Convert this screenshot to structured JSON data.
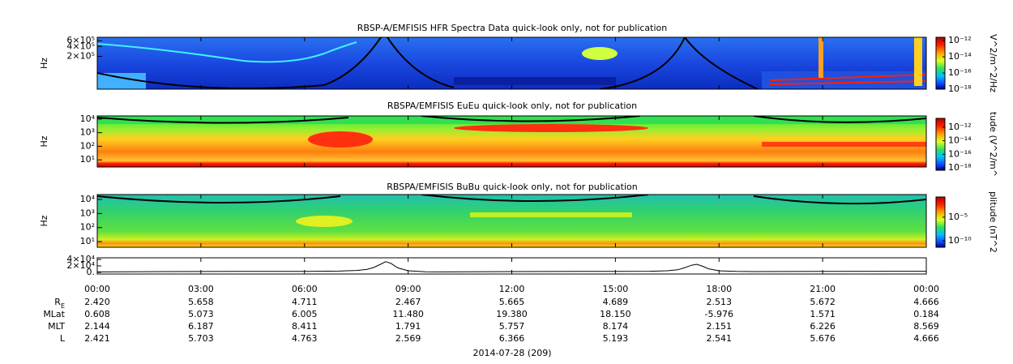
{
  "chart_data": [
    {
      "type": "spectrogram",
      "title": "RBSP-A/EMFISIS  HFR Spectra Data quick-look only, not for publication",
      "ylabel": "Hz",
      "log_y": true,
      "ylim": [
        20000,
        760000
      ],
      "yticks": [
        {
          "value": 600000,
          "label": "6×10⁵"
        },
        {
          "value": 400000,
          "label": "4×10⁵"
        },
        {
          "value": 200000,
          "label": "2×10⁵"
        }
      ],
      "colorbar": {
        "label": "V^2/m^2/Hz",
        "lim": [
          1e-18,
          2.5e-12
        ],
        "ticks": [
          {
            "value": 1e-12,
            "label": "10⁻¹²"
          },
          {
            "value": 1e-14,
            "label": "10⁻¹⁴"
          },
          {
            "value": 1e-16,
            "label": "10⁻¹⁶"
          },
          {
            "value": 1e-18,
            "label": "10⁻¹⁸"
          }
        ]
      }
    },
    {
      "type": "spectrogram",
      "title": "RBSPA/EMFISIS  EuEu quick-look only, not for publication",
      "ylabel": "Hz",
      "log_y": true,
      "ylim": [
        3,
        17000
      ],
      "yticks": [
        {
          "value": 10000,
          "label": "10⁴"
        },
        {
          "value": 1000,
          "label": "10³"
        },
        {
          "value": 100,
          "label": "10²"
        },
        {
          "value": 10,
          "label": "10¹"
        }
      ],
      "colorbar": {
        "label": "tude (V^2/m^",
        "lim": [
          4.4e-19,
          2e-11
        ],
        "ticks": [
          {
            "value": 1e-12,
            "label": "10⁻¹²"
          },
          {
            "value": 1e-14,
            "label": "10⁻¹⁴"
          },
          {
            "value": 1e-16,
            "label": "10⁻¹⁶"
          },
          {
            "value": 1e-18,
            "label": "10⁻¹⁸"
          }
        ]
      }
    },
    {
      "type": "spectrogram",
      "title": "RBSPA/EMFISIS  BuBu quick-look only, not for publication",
      "ylabel": "Hz",
      "log_y": true,
      "ylim": [
        4,
        22000
      ],
      "yticks": [
        {
          "value": 10000,
          "label": "10⁴"
        },
        {
          "value": 1000,
          "label": "10³"
        },
        {
          "value": 100,
          "label": "10²"
        },
        {
          "value": 10,
          "label": "10¹"
        }
      ],
      "colorbar": {
        "label": "plitude (nT^2",
        "lim": [
          4e-12,
          0.2
        ],
        "ticks": [
          {
            "value": 1e-05,
            "label": "10⁻⁵"
          },
          {
            "value": 1e-10,
            "label": "10⁻¹⁰"
          }
        ]
      }
    },
    {
      "type": "line",
      "color": "#000000",
      "ylim": [
        -5000,
        45000
      ],
      "yticks": [
        {
          "value": 40000,
          "label": "4×10⁴"
        },
        {
          "value": 20000,
          "label": "2×10⁴"
        },
        {
          "value": 0,
          "label": "0."
        }
      ],
      "xlim": [
        0,
        24
      ],
      "xticks": [
        {
          "value": 0,
          "label": "00:00"
        },
        {
          "value": 3,
          "label": "03:00"
        },
        {
          "value": 6,
          "label": "06:00"
        },
        {
          "value": 9,
          "label": "09:00"
        },
        {
          "value": 12,
          "label": "12:00"
        },
        {
          "value": 15,
          "label": "15:00"
        },
        {
          "value": 18,
          "label": "18:00"
        },
        {
          "value": 21,
          "label": "21:00"
        },
        {
          "value": 24,
          "label": "00:00"
        }
      ],
      "x": [
        0,
        2,
        4,
        6,
        7,
        7.5,
        7.8,
        8.0,
        8.2,
        8.35,
        8.5,
        8.7,
        9.0,
        9.5,
        10,
        12,
        14,
        16,
        16.5,
        16.8,
        17.0,
        17.2,
        17.35,
        17.5,
        17.7,
        18.0,
        18.5,
        19,
        21,
        24
      ],
      "values": [
        1500,
        2500,
        3000,
        3000,
        4000,
        6000,
        9000,
        15000,
        25000,
        33000,
        28000,
        14000,
        5000,
        2000,
        1500,
        2500,
        3000,
        3500,
        5000,
        8000,
        14000,
        22000,
        25000,
        20000,
        11000,
        5000,
        3000,
        2500,
        3000,
        3500
      ]
    }
  ],
  "ephemeris": {
    "rows": [
      {
        "label": "R",
        "subscript": "E",
        "values": [
          "2.420",
          "5.658",
          "4.711",
          "2.467",
          "5.665",
          "4.689",
          "2.513",
          "5.672",
          "4.666"
        ]
      },
      {
        "label": "MLat",
        "values": [
          "0.608",
          "5.073",
          "6.005",
          "11.480",
          "19.380",
          "18.150",
          "-5.976",
          "1.571",
          "0.184"
        ]
      },
      {
        "label": "MLT",
        "values": [
          "2.144",
          "6.187",
          "8.411",
          "1.791",
          "5.757",
          "8.174",
          "2.151",
          "6.226",
          "8.569"
        ]
      },
      {
        "label": "L",
        "values": [
          "2.421",
          "5.703",
          "4.763",
          "2.569",
          "6.366",
          "5.193",
          "2.541",
          "5.676",
          "4.666"
        ]
      }
    ],
    "date": "2014-07-28 (209)"
  }
}
